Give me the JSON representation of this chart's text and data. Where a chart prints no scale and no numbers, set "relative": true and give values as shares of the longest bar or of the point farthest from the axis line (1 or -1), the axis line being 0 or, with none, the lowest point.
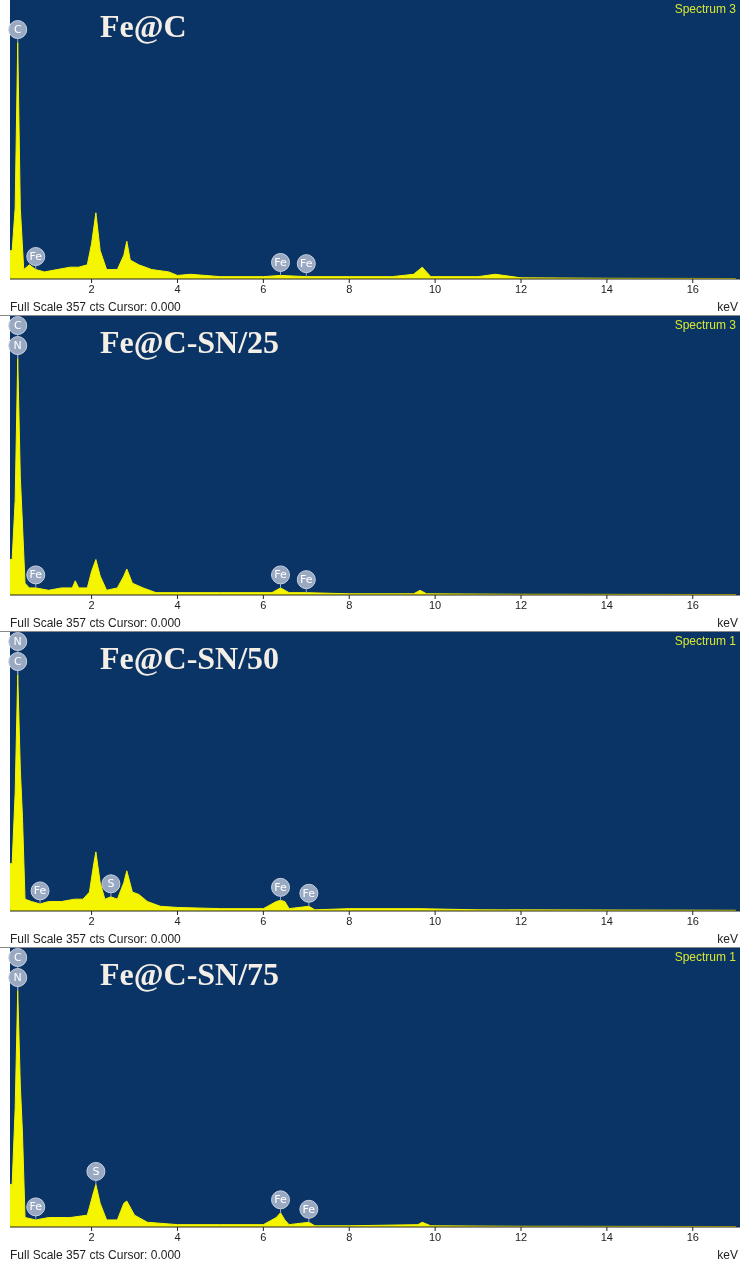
{
  "chart_data": [
    {
      "type": "area",
      "title": "Fe@C",
      "subtitle": "Spectrum 3",
      "xlabel": "keV",
      "relative": true,
      "xlim": [
        0.1,
        17.1
      ],
      "xticks": [
        2,
        4,
        6,
        8,
        10,
        12,
        14,
        16
      ],
      "series": [
        {
          "color": "#f5f500",
          "x": [
            0.1,
            0.15,
            0.22,
            0.28,
            0.34,
            0.42,
            0.55,
            0.7,
            0.9,
            1.2,
            1.5,
            1.7,
            1.9,
            2.0,
            2.1,
            2.2,
            2.35,
            2.6,
            2.75,
            2.82,
            2.9,
            3.1,
            3.4,
            3.8,
            4.0,
            4.3,
            5,
            6,
            6.4,
            7,
            8,
            9,
            9.5,
            9.7,
            9.9,
            11,
            11.4,
            12,
            14,
            17
          ],
          "values": [
            0.12,
            0.12,
            0.3,
            1,
            0.3,
            0.04,
            0.06,
            0.04,
            0.03,
            0.04,
            0.05,
            0.05,
            0.06,
            0.15,
            0.28,
            0.12,
            0.04,
            0.04,
            0.1,
            0.16,
            0.08,
            0.06,
            0.04,
            0.03,
            0.015,
            0.02,
            0.01,
            0.01,
            0.015,
            0.01,
            0.01,
            0.01,
            0.02,
            0.05,
            0.01,
            0.01,
            0.02,
            0.005,
            0.003,
            0.002
          ]
        }
      ],
      "annotations": [
        {
          "text": "C",
          "x": 0.28,
          "y": 1
        },
        {
          "text": "Fe",
          "x": 0.7,
          "y": 0.04
        },
        {
          "text": "Fe",
          "x": 6.4,
          "y": 0.015
        },
        {
          "text": "Fe",
          "x": 7,
          "y": 0.01
        },
        "Full Scale 357 cts Cursor: 0.000"
      ]
    },
    {
      "type": "area",
      "title": "Fe@C-SN/25",
      "subtitle": "Spectrum 3",
      "xlabel": "keV",
      "relative": true,
      "xlim": [
        0.1,
        17.1
      ],
      "xticks": [
        2,
        4,
        6,
        8,
        10,
        12,
        14,
        16
      ],
      "series": [
        {
          "color": "#f5f500",
          "x": [
            0.1,
            0.15,
            0.22,
            0.28,
            0.34,
            0.39,
            0.45,
            0.55,
            0.7,
            1,
            1.3,
            1.55,
            1.62,
            1.7,
            1.9,
            2.0,
            2.1,
            2.2,
            2.35,
            2.6,
            2.75,
            2.82,
            2.95,
            3.2,
            3.5,
            4,
            5,
            6.2,
            6.4,
            6.6,
            7,
            8,
            9.5,
            9.65,
            9.8,
            12,
            17
          ],
          "values": [
            0.15,
            0.15,
            0.4,
            1,
            0.5,
            0.3,
            0.05,
            0.03,
            0.03,
            0.02,
            0.03,
            0.03,
            0.06,
            0.03,
            0.03,
            0.1,
            0.15,
            0.08,
            0.02,
            0.03,
            0.08,
            0.11,
            0.05,
            0.03,
            0.01,
            0.01,
            0.01,
            0.01,
            0.03,
            0.01,
            0.01,
            0.005,
            0.005,
            0.02,
            0.005,
            0.003,
            0.002
          ]
        }
      ],
      "annotations": [
        {
          "text": "C",
          "x": 0.28,
          "y": 1
        },
        {
          "text": "N",
          "x": 0.28,
          "y": 1
        },
        {
          "text": "Fe",
          "x": 0.7,
          "y": 0.03
        },
        {
          "text": "Fe",
          "x": 6.4,
          "y": 0.03
        },
        {
          "text": "Fe",
          "x": 7,
          "y": 0.01
        },
        "Full Scale 357 cts Cursor: 0.000"
      ]
    },
    {
      "type": "area",
      "title": "Fe@C-SN/50",
      "subtitle": "Spectrum 1",
      "xlabel": "keV",
      "relative": true,
      "xlim": [
        0.1,
        17.1
      ],
      "xticks": [
        2,
        4,
        6,
        8,
        10,
        12,
        14,
        16
      ],
      "series": [
        {
          "color": "#f5f500",
          "x": [
            0.1,
            0.15,
            0.22,
            0.28,
            0.34,
            0.39,
            0.45,
            0.6,
            0.8,
            1,
            1.3,
            1.6,
            1.8,
            1.95,
            2.05,
            2.1,
            2.2,
            2.31,
            2.45,
            2.6,
            2.75,
            2.82,
            2.95,
            3.1,
            3.3,
            3.6,
            4,
            5,
            6,
            6.3,
            6.4,
            6.5,
            6.6,
            7.06,
            7.2,
            8,
            9.6,
            11,
            17
          ],
          "values": [
            0.2,
            0.2,
            0.5,
            1,
            0.6,
            0.4,
            0.05,
            0.04,
            0.03,
            0.04,
            0.04,
            0.05,
            0.05,
            0.08,
            0.2,
            0.25,
            0.12,
            0.05,
            0.06,
            0.05,
            0.12,
            0.17,
            0.08,
            0.07,
            0.04,
            0.02,
            0.015,
            0.01,
            0.01,
            0.04,
            0.045,
            0.04,
            0.01,
            0.02,
            0.005,
            0.01,
            0.01,
            0.005,
            0.003
          ]
        }
      ],
      "annotations": [
        {
          "text": "N",
          "x": 0.28,
          "y": 1
        },
        {
          "text": "C",
          "x": 0.28,
          "y": 1
        },
        {
          "text": "Fe",
          "x": 0.8,
          "y": 0.03
        },
        {
          "text": "S",
          "x": 2.45,
          "y": 0.06
        },
        {
          "text": "Fe",
          "x": 6.4,
          "y": 0.045
        },
        {
          "text": "Fe",
          "x": 7.06,
          "y": 0.02
        },
        "Full Scale 357 cts Cursor: 0.000"
      ]
    },
    {
      "type": "area",
      "title": "Fe@C-SN/75",
      "subtitle": "Spectrum 1",
      "xlabel": "keV",
      "relative": true,
      "xlim": [
        0.1,
        17.1
      ],
      "xticks": [
        2,
        4,
        6,
        8,
        10,
        12,
        14,
        16
      ],
      "series": [
        {
          "color": "#f5f500",
          "x": [
            0.1,
            0.15,
            0.22,
            0.28,
            0.34,
            0.39,
            0.45,
            0.7,
            1,
            1.5,
            1.9,
            2.05,
            2.1,
            2.2,
            2.35,
            2.6,
            2.75,
            2.82,
            3.0,
            3.3,
            4,
            5,
            6,
            6.3,
            6.4,
            6.5,
            6.6,
            7.06,
            7.2,
            8,
            9.6,
            9.7,
            9.9,
            12,
            17
          ],
          "values": [
            0.18,
            0.18,
            0.5,
            1,
            0.6,
            0.4,
            0.04,
            0.03,
            0.04,
            0.04,
            0.05,
            0.15,
            0.18,
            0.1,
            0.03,
            0.03,
            0.1,
            0.11,
            0.05,
            0.02,
            0.01,
            0.01,
            0.01,
            0.04,
            0.06,
            0.03,
            0.01,
            0.02,
            0.005,
            0.005,
            0.01,
            0.02,
            0.005,
            0.003,
            0.002
          ]
        }
      ],
      "annotations": [
        {
          "text": "C",
          "x": 0.28,
          "y": 1
        },
        {
          "text": "N",
          "x": 0.28,
          "y": 1
        },
        {
          "text": "Fe",
          "x": 0.7,
          "y": 0.03
        },
        {
          "text": "S",
          "x": 2.1,
          "y": 0.18
        },
        {
          "text": "Fe",
          "x": 6.4,
          "y": 0.06
        },
        {
          "text": "Fe",
          "x": 7.06,
          "y": 0.02
        },
        "Full Scale 357 cts Cursor: 0.000"
      ]
    }
  ]
}
